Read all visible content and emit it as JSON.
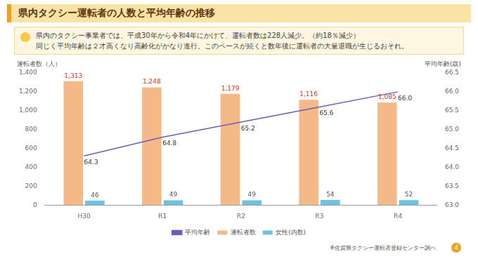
{
  "header": {
    "title": "県内タクシー運転者の人数と平均年齢の推移"
  },
  "note": {
    "lines": [
      "県内のタクシー事業者では、平成30年から令和4年にかけて、運転者数は228人減少。（約18％減少）",
      "同じく平均年齢は２才高くなり高齢化がかなり進行。このペースが続くと数年後に運転者の大量退職が生じるおそれ。"
    ]
  },
  "chart_data": {
    "type": "bar",
    "y_label": "運転者数（人）",
    "y2_label": "平均年齢(歳)",
    "categories": [
      "H30",
      "R1",
      "R2",
      "R3",
      "R4"
    ],
    "series": [
      {
        "name": "運転者数",
        "type": "bar",
        "color": "#f5b987",
        "values": [
          1313,
          1248,
          1179,
          1116,
          1085
        ],
        "value_labels": [
          "1,313",
          "1,248",
          "1,179",
          "1,116",
          "1,085"
        ]
      },
      {
        "name": "女性(内数)",
        "type": "bar",
        "color": "#6cc3e0",
        "values": [
          46,
          49,
          49,
          54,
          52
        ]
      },
      {
        "name": "平均年齢",
        "type": "line",
        "axis": "y2",
        "color": "#6a5fb8",
        "marker": "none",
        "values": [
          64.3,
          64.8,
          65.2,
          65.6,
          66.0
        ],
        "value_labels": [
          "64.3",
          "64.8",
          "65.2",
          "65.6",
          "66.0"
        ]
      }
    ],
    "ylim": [
      0,
      1400
    ],
    "yticks": [
      0,
      200,
      400,
      600,
      800,
      {
        "value": 1000,
        "label": "1,000"
      },
      {
        "value": 1200,
        "label": "1,200"
      },
      {
        "value": 1400,
        "label": "1,400"
      }
    ],
    "y2lim": [
      63,
      66.5
    ],
    "y2ticks": [
      {
        "value": 63,
        "label": "63.0"
      },
      63.5,
      {
        "value": 64,
        "label": "64.0"
      },
      64.5,
      {
        "value": 65,
        "label": "65.0"
      },
      65.5,
      {
        "value": 66,
        "label": "66.0"
      },
      66.5
    ],
    "grid": false,
    "data_labels": true,
    "legend": "bottom"
  },
  "footnote": "※佐賀県タクシー運転者登録センター調べ",
  "page": "4"
}
